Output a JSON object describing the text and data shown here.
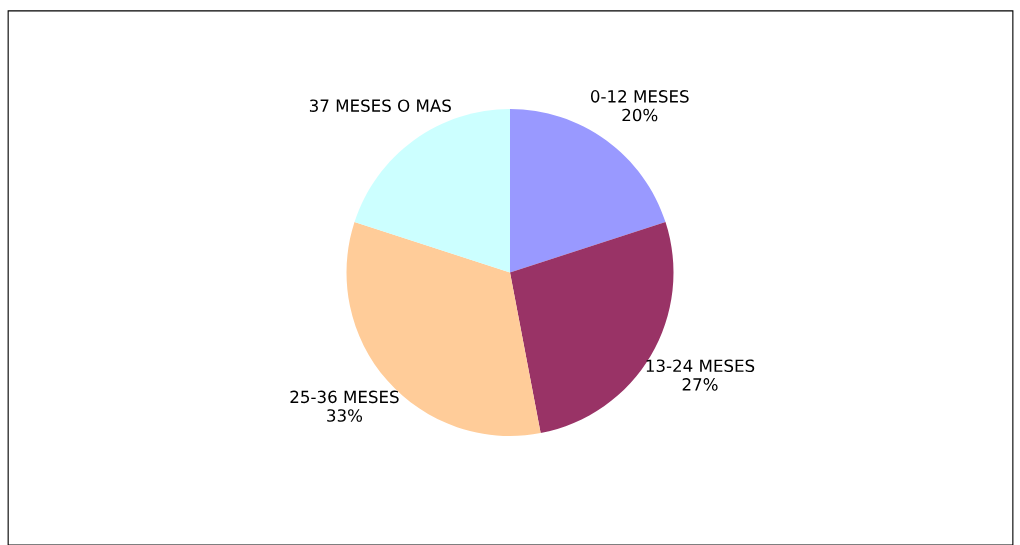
{
  "chart_data": {
    "type": "pie",
    "categories": [
      "0-12 MESES",
      "13-24 MESES",
      "25-36 MESES",
      "37 MESES O MAS"
    ],
    "values": [
      20,
      27,
      33,
      20
    ],
    "colors": [
      "#9999ff",
      "#993366",
      "#ffcc99",
      "#ccffff"
    ],
    "value_labels": [
      "20%",
      "27%",
      "33%",
      null
    ]
  }
}
